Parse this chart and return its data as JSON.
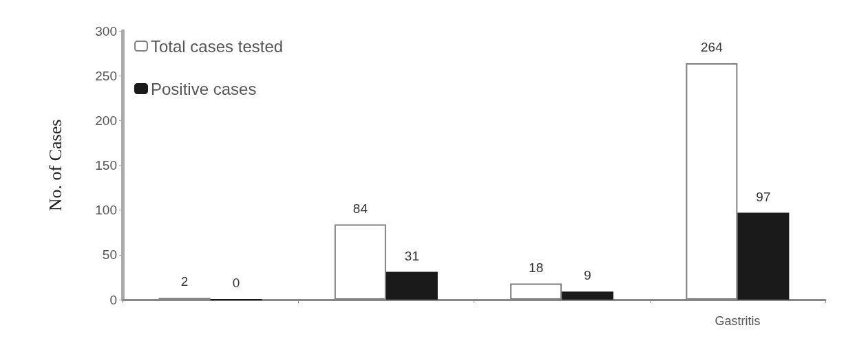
{
  "chart_data": {
    "type": "bar",
    "ylabel": "No. of Cases",
    "categories": [
      null,
      null,
      null,
      "Gastritis"
    ],
    "series": [
      {
        "name": "Total cases tested",
        "color": "#ffffff",
        "values": [
          2,
          84,
          18,
          264
        ]
      },
      {
        "name": "Positive cases",
        "color": "#1a1a1a",
        "values": [
          0,
          31,
          9,
          97
        ]
      }
    ],
    "ylim": [
      0,
      300
    ],
    "yticks": [
      0,
      50,
      100,
      150,
      200,
      250,
      300
    ],
    "data_labels": true,
    "legend": "top left",
    "grid": false
  }
}
